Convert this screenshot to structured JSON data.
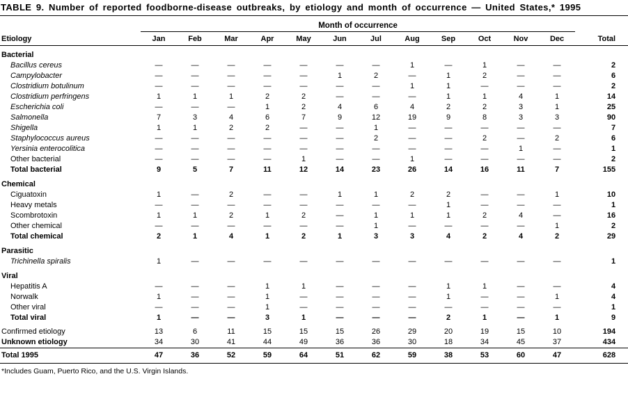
{
  "title": "TABLE 9. Number of reported foodborne-disease outbreaks, by etiology and month of occurrence — United States,* 1995",
  "footnote": "*Includes Guam, Puerto Rico, and the U.S. Virgin Islands.",
  "table": {
    "month_group_header": "Month of occurrence",
    "etiology_header": "Etiology",
    "total_header": "Total",
    "months": [
      "Jan",
      "Feb",
      "Mar",
      "Apr",
      "May",
      "Jun",
      "Jul",
      "Aug",
      "Sep",
      "Oct",
      "Nov",
      "Dec"
    ],
    "sections": [
      {
        "name": "Bacterial",
        "rows": [
          {
            "label": "Bacillus cereus",
            "style": "species",
            "values": [
              "—",
              "—",
              "—",
              "—",
              "—",
              "—",
              "—",
              "1",
              "—",
              "1",
              "—",
              "—"
            ],
            "total": "2"
          },
          {
            "label": "Campylobacter",
            "style": "species",
            "values": [
              "—",
              "—",
              "—",
              "—",
              "—",
              "1",
              "2",
              "—",
              "1",
              "2",
              "—",
              "—"
            ],
            "total": "6"
          },
          {
            "label": "Clostridium botulinum",
            "style": "species",
            "values": [
              "—",
              "—",
              "—",
              "—",
              "—",
              "—",
              "—",
              "1",
              "1",
              "—",
              "—",
              "—"
            ],
            "total": "2"
          },
          {
            "label": "Clostridium perfringens",
            "style": "species",
            "values": [
              "1",
              "1",
              "1",
              "2",
              "2",
              "—",
              "—",
              "—",
              "1",
              "1",
              "4",
              "1"
            ],
            "total": "14"
          },
          {
            "label": "Escherichia coli",
            "style": "species",
            "values": [
              "—",
              "—",
              "—",
              "1",
              "2",
              "4",
              "6",
              "4",
              "2",
              "2",
              "3",
              "1"
            ],
            "total": "25"
          },
          {
            "label": "Salmonella",
            "style": "species",
            "values": [
              "7",
              "3",
              "4",
              "6",
              "7",
              "9",
              "12",
              "19",
              "9",
              "8",
              "3",
              "3"
            ],
            "total": "90"
          },
          {
            "label": "Shigella",
            "style": "species",
            "values": [
              "1",
              "1",
              "2",
              "2",
              "—",
              "—",
              "1",
              "—",
              "—",
              "—",
              "—",
              "—"
            ],
            "total": "7"
          },
          {
            "label": "Staphylococcus aureus",
            "style": "species",
            "values": [
              "—",
              "—",
              "—",
              "—",
              "—",
              "—",
              "2",
              "—",
              "—",
              "2",
              "—",
              "2"
            ],
            "total": "6"
          },
          {
            "label": "Yersinia enterocolitica",
            "style": "species",
            "values": [
              "—",
              "—",
              "—",
              "—",
              "—",
              "—",
              "—",
              "—",
              "—",
              "—",
              "1",
              "—"
            ],
            "total": "1"
          },
          {
            "label": "Other bacterial",
            "style": "plain",
            "values": [
              "—",
              "—",
              "—",
              "—",
              "1",
              "—",
              "—",
              "1",
              "—",
              "—",
              "—",
              "—"
            ],
            "total": "2"
          },
          {
            "label": "Total bacterial",
            "style": "total",
            "values": [
              "9",
              "5",
              "7",
              "11",
              "12",
              "14",
              "23",
              "26",
              "14",
              "16",
              "11",
              "7"
            ],
            "total": "155"
          }
        ]
      },
      {
        "name": "Chemical",
        "rows": [
          {
            "label": "Ciguatoxin",
            "style": "plain",
            "values": [
              "1",
              "—",
              "2",
              "—",
              "—",
              "1",
              "1",
              "2",
              "2",
              "—",
              "—",
              "1"
            ],
            "total": "10"
          },
          {
            "label": "Heavy metals",
            "style": "plain",
            "values": [
              "—",
              "—",
              "—",
              "—",
              "—",
              "—",
              "—",
              "—",
              "1",
              "—",
              "—",
              "—"
            ],
            "total": "1"
          },
          {
            "label": "Scombrotoxin",
            "style": "plain",
            "values": [
              "1",
              "1",
              "2",
              "1",
              "2",
              "—",
              "1",
              "1",
              "1",
              "2",
              "4",
              "—"
            ],
            "total": "16"
          },
          {
            "label": "Other chemical",
            "style": "plain",
            "values": [
              "—",
              "—",
              "—",
              "—",
              "—",
              "—",
              "1",
              "—",
              "—",
              "—",
              "—",
              "1"
            ],
            "total": "2"
          },
          {
            "label": "Total chemical",
            "style": "total",
            "values": [
              "2",
              "1",
              "4",
              "1",
              "2",
              "1",
              "3",
              "3",
              "4",
              "2",
              "4",
              "2"
            ],
            "total": "29"
          }
        ]
      },
      {
        "name": "Parasitic",
        "rows": [
          {
            "label": "Trichinella spiralis",
            "style": "species",
            "values": [
              "1",
              "—",
              "—",
              "—",
              "—",
              "—",
              "—",
              "—",
              "—",
              "—",
              "—",
              "—"
            ],
            "total": "1"
          }
        ]
      },
      {
        "name": "Viral",
        "rows": [
          {
            "label": "Hepatitis A",
            "style": "plain",
            "values": [
              "—",
              "—",
              "—",
              "1",
              "1",
              "—",
              "—",
              "—",
              "1",
              "1",
              "—",
              "—"
            ],
            "total": "4"
          },
          {
            "label": "Norwalk",
            "style": "plain",
            "values": [
              "1",
              "—",
              "—",
              "1",
              "—",
              "—",
              "—",
              "—",
              "1",
              "—",
              "—",
              "1"
            ],
            "total": "4"
          },
          {
            "label": "Other viral",
            "style": "plain",
            "values": [
              "—",
              "—",
              "—",
              "1",
              "—",
              "—",
              "—",
              "—",
              "—",
              "—",
              "—",
              "—"
            ],
            "total": "1"
          },
          {
            "label": "Total viral",
            "style": "total",
            "values": [
              "1",
              "—",
              "—",
              "3",
              "1",
              "—",
              "—",
              "—",
              "2",
              "1",
              "—",
              "1"
            ],
            "total": "9"
          }
        ]
      },
      {
        "name": null,
        "rows": [
          {
            "label": "Confirmed etiology",
            "style": "summary",
            "values": [
              "13",
              "6",
              "11",
              "15",
              "15",
              "15",
              "26",
              "29",
              "20",
              "19",
              "15",
              "10"
            ],
            "total": "194"
          },
          {
            "label": "Unknown etiology",
            "style": "summary-bold",
            "values": [
              "34",
              "30",
              "41",
              "44",
              "49",
              "36",
              "36",
              "30",
              "18",
              "34",
              "45",
              "37"
            ],
            "total": "434"
          }
        ]
      }
    ],
    "grand_total_row": {
      "label": "Total 1995",
      "style": "grand",
      "values": [
        "47",
        "36",
        "52",
        "59",
        "64",
        "51",
        "62",
        "59",
        "38",
        "53",
        "60",
        "47"
      ],
      "total": "628"
    }
  }
}
